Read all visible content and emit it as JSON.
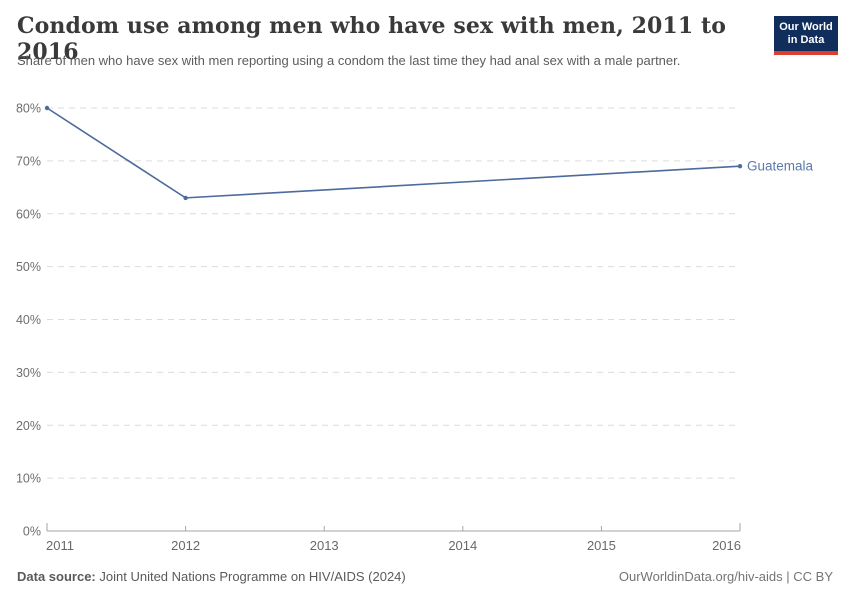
{
  "header": {
    "title": "Condom use among men who have sex with men, 2011 to 2016",
    "subtitle": "Share of men who have sex with men reporting using a condom the last time they had anal sex with a male partner."
  },
  "logo": {
    "line1": "Our World",
    "line2": "in Data",
    "bg_color": "#102d5c",
    "accent_color": "#dc3e32",
    "text_color": "#ffffff"
  },
  "chart_data": {
    "type": "line",
    "title": "Condom use among men who have sex with men, 2011 to 2016",
    "xlabel": "",
    "ylabel": "",
    "x": {
      "ticks": [
        2011,
        2012,
        2013,
        2014,
        2015,
        2016
      ],
      "range": [
        2011,
        2016
      ]
    },
    "y": {
      "ticks": [
        0,
        10,
        20,
        30,
        40,
        50,
        60,
        70,
        80
      ],
      "range": [
        0,
        80
      ],
      "format": "percent",
      "gridlines": "dashed"
    },
    "series": [
      {
        "name": "Guatemala",
        "color": "#4c6a9c",
        "label_color": "#5b79ab",
        "points": [
          {
            "year": 2011,
            "value": 80
          },
          {
            "year": 2012,
            "value": 63
          },
          {
            "year": 2016,
            "value": 69
          }
        ]
      }
    ],
    "legend_position": "end-of-line-label",
    "colors": {
      "grid": "#dcdcdc",
      "axis": "#a6a6a6"
    }
  },
  "footer": {
    "source_label": "Data source:",
    "source_text": "Joint United Nations Programme on HIV/AIDS (2024)",
    "right_text": "OurWorldinData.org/hiv-aids | CC BY"
  }
}
